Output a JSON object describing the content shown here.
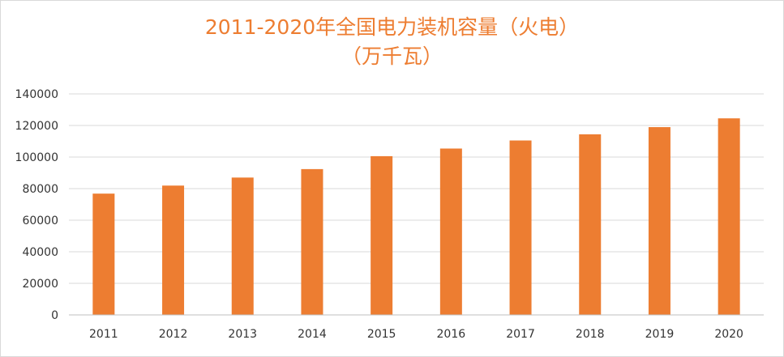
{
  "chart_data": {
    "type": "bar",
    "title": "2011-2020年全国电力装机容量（火电）",
    "subtitle": "（万千瓦）",
    "xlabel": "",
    "ylabel": "",
    "categories": [
      "2011",
      "2012",
      "2013",
      "2014",
      "2015",
      "2016",
      "2017",
      "2018",
      "2019",
      "2020"
    ],
    "values": [
      76834,
      81917,
      87009,
      92363,
      100554,
      105388,
      110495,
      114408,
      118957,
      124517
    ],
    "ylim": [
      0,
      140000
    ],
    "yticks": [
      0,
      20000,
      40000,
      60000,
      80000,
      100000,
      120000,
      140000
    ],
    "grid": true,
    "legend": "none",
    "colors": {
      "bar": "#ed7d31",
      "title": "#ed7d31",
      "grid": "#d9d9d9",
      "axis": "#bfbfbf",
      "text": "#333333"
    }
  }
}
